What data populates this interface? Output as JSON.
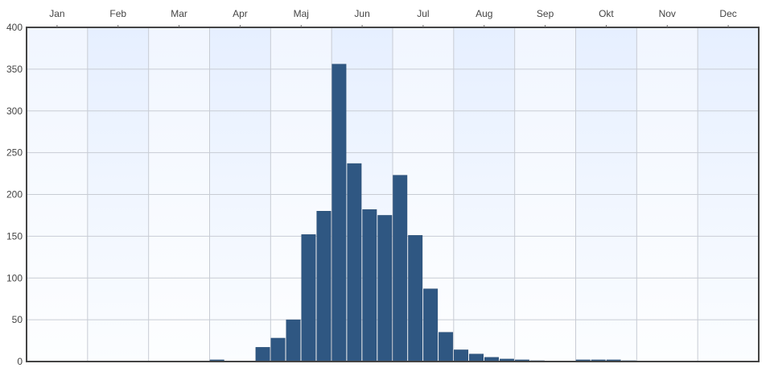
{
  "chart_data": {
    "type": "bar",
    "title": "",
    "xlabel": "",
    "ylabel": "",
    "x_axis_position": "top",
    "months": [
      "Jan",
      "Feb",
      "Mar",
      "Apr",
      "Maj",
      "Jun",
      "Jul",
      "Aug",
      "Sep",
      "Okt",
      "Nov",
      "Dec"
    ],
    "bins_per_month": 4,
    "ylim": [
      0,
      400
    ],
    "yticks": [
      0,
      50,
      100,
      150,
      200,
      250,
      300,
      350,
      400
    ],
    "grid": true,
    "bar_color": "#2f5782",
    "values": [
      0,
      0,
      0,
      0,
      0,
      0,
      0,
      0,
      0,
      0,
      0,
      0,
      2,
      0,
      0,
      17,
      28,
      50,
      152,
      180,
      356,
      237,
      182,
      175,
      223,
      151,
      87,
      35,
      14,
      9,
      5,
      3,
      2,
      1,
      0,
      0,
      2,
      2,
      2,
      1,
      0,
      0,
      0,
      0,
      0,
      0,
      0,
      0
    ]
  }
}
